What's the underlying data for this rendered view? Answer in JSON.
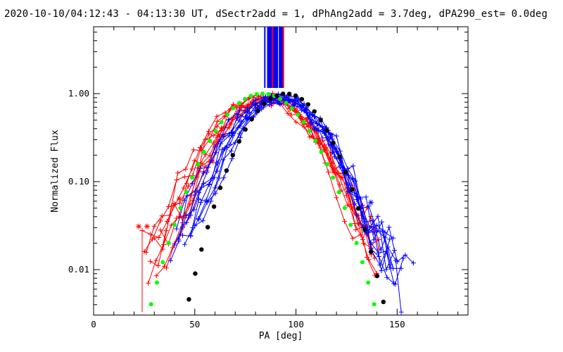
{
  "app": {
    "kind": "idl-scientific-plot",
    "background_color": "#ffffff",
    "axis_color": "#000000"
  },
  "chart_data": {
    "type": "line",
    "title": "2020-10-10/04:12:43 - 04:13:30 UT, dSectr2add = 1, dPhAng2add = 3.7deg, dPA290_est=  0.0deg",
    "xlabel": "PA [deg]",
    "ylabel": "Normalized Flux",
    "x_scale": "linear",
    "y_scale": "log",
    "xlim": [
      0,
      185
    ],
    "ylim": [
      0.00305,
      5.76
    ],
    "grid": false,
    "legend": "none",
    "x_major_ticks": [
      0,
      50,
      100,
      150
    ],
    "x_tick_labels": [
      "0",
      "50",
      "100",
      "150"
    ],
    "x_minor_step": 10,
    "y_major_ticks": [
      1.0,
      0.1,
      0.01
    ],
    "y_tick_labels": [
      "1.00",
      "0.10",
      "0.01"
    ],
    "colors": {
      "measured_red": "#ff0000",
      "measured_blue": "#0000ff",
      "fit_wide_green": "#00ff00",
      "fit_narrow_black": "#000000"
    },
    "fit_curves": [
      {
        "name": "wide-gaussian-fit",
        "color": "#00ff00",
        "style": "thick-dotted",
        "center_pa_deg": 83.5,
        "sigma_deg": 16.6,
        "peak_flux": 1.0,
        "pa_range": [
          25.5,
          141.5
        ],
        "dot_spacing_deg": 2.9,
        "dot_radius_px": 3.0
      },
      {
        "name": "narrow-gaussian-fit",
        "color": "#000000",
        "style": "thick-dotted",
        "center_pa_deg": 95.0,
        "sigma_deg": 14.6,
        "peak_flux": 1.0,
        "pa_range": [
          44.0,
          146.0
        ],
        "dot_spacing_deg": 3.1,
        "dot_radius_px": 3.2
      }
    ],
    "peak_marker_lines": {
      "flux_range": [
        1.16,
        5.76
      ],
      "bands": [
        {
          "pa_range": [
            85.9,
            91.0
          ],
          "color": "#0000ff"
        },
        {
          "pa_range": [
            91.7,
            93.5
          ],
          "color": "#0000ff"
        }
      ],
      "lines": [
        {
          "pa": 84.6,
          "color": "#0000ff"
        },
        {
          "pa": 88.4,
          "color": "#ff0000"
        },
        {
          "pa": 93.8,
          "color": "#ff0000"
        }
      ]
    },
    "asterisk_markers": [
      {
        "pa": 22.3,
        "flux": 0.031,
        "color": "#ff0000"
      },
      {
        "pa": 26.4,
        "flux": 0.031,
        "color": "#ff0000"
      },
      {
        "pa": 42.4,
        "flux": 0.064,
        "color": "#ff0000"
      },
      {
        "pa": 61.9,
        "flux": 0.337,
        "color": "#ff0000"
      },
      {
        "pa": 117.5,
        "flux": 0.34,
        "color": "#0000ff"
      },
      {
        "pa": 137.0,
        "flux": 0.058,
        "color": "#0000ff"
      }
    ],
    "measured_curves": [
      {
        "color": "#ff0000",
        "center": 84.0,
        "sigma": 18.5,
        "peak": 0.92,
        "floor": 0.01,
        "pa_min": 25,
        "pa_max": 141,
        "step": 4.0,
        "jitter": 0.3,
        "seed": 11
      },
      {
        "color": "#ff0000",
        "center": 86.0,
        "sigma": 17.0,
        "peak": 0.88,
        "floor": 0.014,
        "pa_min": 28,
        "pa_max": 140,
        "step": 3.9,
        "jitter": 0.25,
        "seed": 12
      },
      {
        "color": "#ff0000",
        "center": 83.0,
        "sigma": 19.5,
        "peak": 0.85,
        "floor": 0.016,
        "pa_min": 24,
        "pa_max": 139,
        "step": 4.1,
        "jitter": 0.33,
        "seed": 13,
        "drop_start": true
      },
      {
        "color": "#ff0000",
        "center": 87.0,
        "sigma": 16.0,
        "peak": 0.95,
        "floor": 0.007,
        "pa_min": 31,
        "pa_max": 142,
        "step": 4.0,
        "jitter": 0.22,
        "seed": 14
      },
      {
        "color": "#ff0000",
        "center": 85.0,
        "sigma": 18.0,
        "peak": 0.8,
        "floor": 0.006,
        "pa_min": 27,
        "pa_max": 140,
        "step": 3.8,
        "jitter": 0.28,
        "seed": 15
      },
      {
        "color": "#ff0000",
        "center": 84.5,
        "sigma": 17.5,
        "peak": 0.9,
        "floor": 0.012,
        "pa_min": 30,
        "pa_max": 141,
        "step": 4.2,
        "jitter": 0.26,
        "seed": 16
      },
      {
        "color": "#ff0000",
        "center": 86.5,
        "sigma": 16.5,
        "peak": 0.86,
        "floor": 0.018,
        "pa_min": 33,
        "pa_max": 143,
        "step": 4.0,
        "jitter": 0.24,
        "seed": 17
      },
      {
        "color": "#ff0000",
        "center": 83.5,
        "sigma": 19.0,
        "peak": 0.93,
        "floor": 0.009,
        "pa_min": 26,
        "pa_max": 138,
        "step": 3.9,
        "jitter": 0.31,
        "seed": 18
      },
      {
        "color": "#ff0000",
        "center": 85.5,
        "sigma": 15.5,
        "peak": 0.82,
        "floor": 0.013,
        "pa_min": 36,
        "pa_max": 140,
        "step": 4.0,
        "jitter": 0.27,
        "seed": 19
      },
      {
        "color": "#0000ff",
        "center": 91.0,
        "sigma": 17.5,
        "peak": 0.9,
        "floor": 0.008,
        "pa_min": 40,
        "pa_max": 150,
        "step": 4.0,
        "jitter": 0.28,
        "seed": 21
      },
      {
        "color": "#0000ff",
        "center": 92.0,
        "sigma": 16.0,
        "peak": 0.85,
        "floor": 0.012,
        "pa_min": 44,
        "pa_max": 152,
        "step": 3.9,
        "jitter": 0.25,
        "seed": 22,
        "drop_to_bottom": true
      },
      {
        "color": "#0000ff",
        "center": 90.0,
        "sigma": 18.5,
        "peak": 0.88,
        "floor": 0.006,
        "pa_min": 38,
        "pa_max": 149,
        "step": 4.1,
        "jitter": 0.3,
        "seed": 23
      },
      {
        "color": "#0000ff",
        "center": 93.0,
        "sigma": 15.5,
        "peak": 0.92,
        "floor": 0.015,
        "pa_min": 48,
        "pa_max": 155,
        "step": 4.0,
        "jitter": 0.24,
        "seed": 24
      },
      {
        "color": "#0000ff",
        "center": 91.5,
        "sigma": 16.5,
        "peak": 0.87,
        "floor": 0.01,
        "pa_min": 42,
        "pa_max": 151,
        "step": 3.8,
        "jitter": 0.27,
        "seed": 25
      },
      {
        "color": "#0000ff",
        "center": 90.5,
        "sigma": 17.0,
        "peak": 0.83,
        "floor": 0.007,
        "pa_min": 46,
        "pa_max": 148,
        "step": 4.2,
        "jitter": 0.26,
        "seed": 26
      },
      {
        "color": "#0000ff",
        "center": 92.5,
        "sigma": 15.0,
        "peak": 0.9,
        "floor": 0.018,
        "pa_min": 50,
        "pa_max": 158,
        "step": 4.0,
        "jitter": 0.23,
        "seed": 27
      },
      {
        "color": "#0000ff",
        "center": 89.5,
        "sigma": 18.0,
        "peak": 0.86,
        "floor": 0.009,
        "pa_min": 41,
        "pa_max": 147,
        "step": 3.9,
        "jitter": 0.29,
        "seed": 28
      },
      {
        "color": "#0000ff",
        "center": 91.0,
        "sigma": 16.0,
        "peak": 0.94,
        "floor": 0.011,
        "pa_min": 45,
        "pa_max": 153,
        "step": 4.0,
        "jitter": 0.25,
        "seed": 29
      },
      {
        "color": "#0000ff",
        "center": 93.5,
        "sigma": 14.5,
        "peak": 0.89,
        "floor": 0.013,
        "pa_min": 52,
        "pa_max": 150,
        "step": 4.1,
        "jitter": 0.22,
        "seed": 30
      }
    ]
  }
}
